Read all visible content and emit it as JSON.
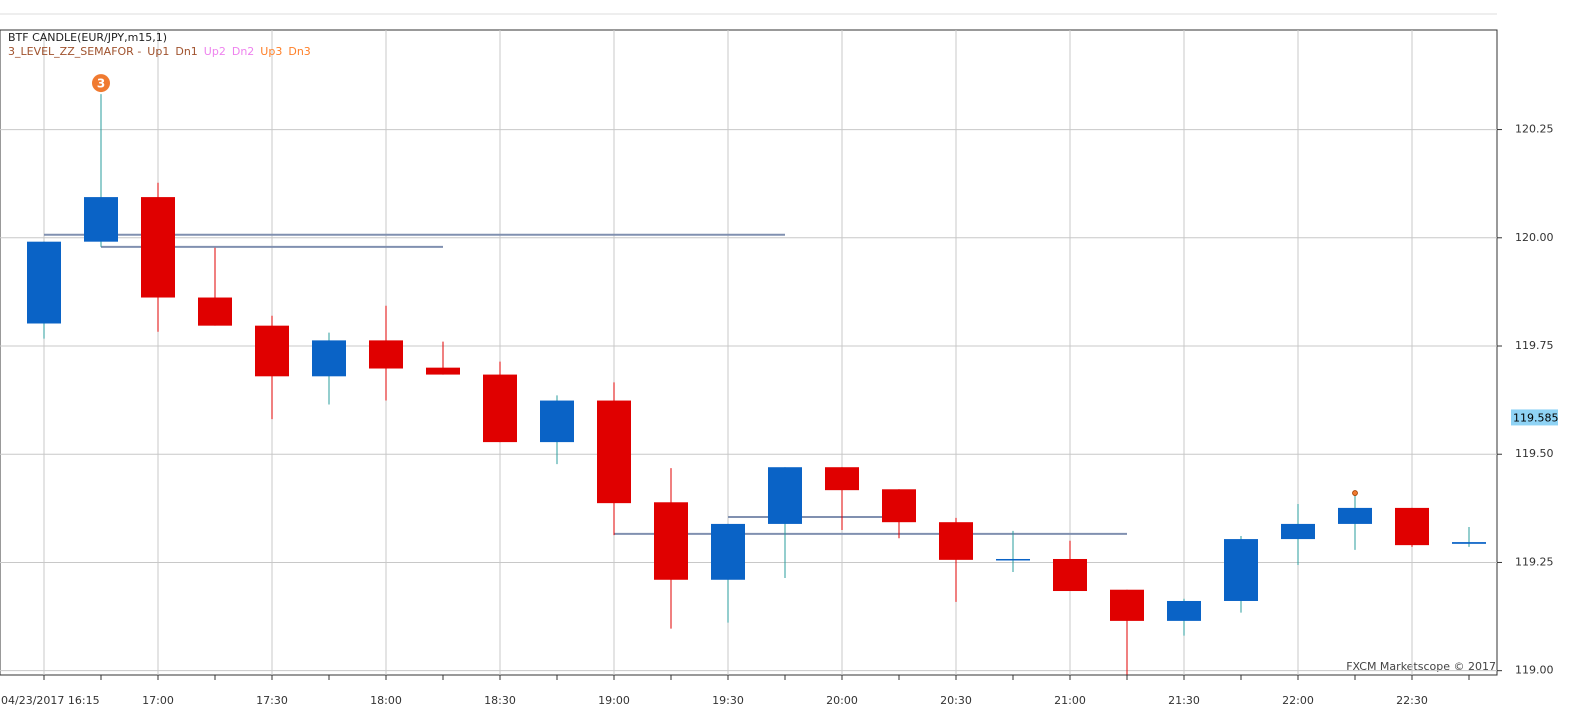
{
  "chart_data": {
    "type": "candlestick",
    "title": "BTF CANDLE(EUR/JPY,m15,1)",
    "indicator": {
      "name": "3_LEVEL_ZZ_SEMAFOR -",
      "items": [
        {
          "label": "Up1",
          "color": "#a0522d"
        },
        {
          "label": "Dn1",
          "color": "#a0522d"
        },
        {
          "label": "Up2",
          "color": "#ee82ee"
        },
        {
          "label": "Dn2",
          "color": "#ee82ee"
        },
        {
          "label": "Up3",
          "color": "#ff7f27"
        },
        {
          "label": "Dn3",
          "color": "#ff7f27"
        }
      ]
    },
    "watermark": "FXCM Marketscope © 2017",
    "categories": [
      "04/23/2017 16:15",
      null,
      "17:00",
      null,
      "17:30",
      null,
      "18:00",
      null,
      "18:30",
      null,
      "19:00",
      null,
      "19:30",
      null,
      "20:00",
      null,
      "20:30",
      null,
      "21:00",
      null,
      "21:30",
      null,
      "22:00",
      null,
      "22:30",
      null
    ],
    "open": [
      119.802,
      119.991,
      120.094,
      119.862,
      119.797,
      119.68,
      119.763,
      119.7,
      119.684,
      119.528,
      119.624,
      119.389,
      119.21,
      119.339,
      119.47,
      119.419,
      119.343,
      119.256,
      119.258,
      119.187,
      119.115,
      119.161,
      119.304,
      119.339,
      119.376,
      119.293
    ],
    "high": [
      119.991,
      120.332,
      120.127,
      119.977,
      119.82,
      119.781,
      119.843,
      119.76,
      119.714,
      119.636,
      119.666,
      119.468,
      119.339,
      119.47,
      119.47,
      119.419,
      119.353,
      119.323,
      119.3,
      119.187,
      119.166,
      119.311,
      119.385,
      119.408,
      119.376,
      119.332
    ],
    "low": [
      119.767,
      119.979,
      119.783,
      119.797,
      119.581,
      119.615,
      119.624,
      119.684,
      119.528,
      119.477,
      119.313,
      119.097,
      119.111,
      119.214,
      119.325,
      119.306,
      119.159,
      119.228,
      119.184,
      118.991,
      119.081,
      119.134,
      119.244,
      119.279,
      119.286,
      119.286
    ],
    "close": [
      119.991,
      120.094,
      119.862,
      119.797,
      119.68,
      119.763,
      119.698,
      119.684,
      119.528,
      119.624,
      119.387,
      119.21,
      119.339,
      119.47,
      119.417,
      119.343,
      119.256,
      119.258,
      119.184,
      119.115,
      119.161,
      119.304,
      119.339,
      119.376,
      119.29,
      119.297
    ],
    "up_color": "#0a63c6",
    "down_color": "#e00000",
    "up_wick_color": "#2a9d9d",
    "down_wick_color": "#e00000",
    "levels": [
      {
        "value": 120.007,
        "from": 0,
        "to": 13
      },
      {
        "value": 119.979,
        "from": 1,
        "to": 7
      },
      {
        "value": 119.355,
        "from": 12,
        "to": 15
      },
      {
        "value": 119.316,
        "from": 10,
        "to": 19
      }
    ],
    "level_color": "#8090b0",
    "semafor": [
      {
        "index": 1,
        "label": "3"
      },
      {
        "index": 23
      }
    ],
    "semafor_color": "#f07a30",
    "current_price": 119.585,
    "ylim": [
      118.99,
      120.48
    ],
    "yticks": [
      {
        "value": 119,
        "label": "119.00"
      },
      119.25,
      {
        "value": 119.5,
        "label": "119.50"
      },
      119.75,
      {
        "value": 120,
        "label": "120.00"
      },
      120.25
    ],
    "grid": true
  }
}
